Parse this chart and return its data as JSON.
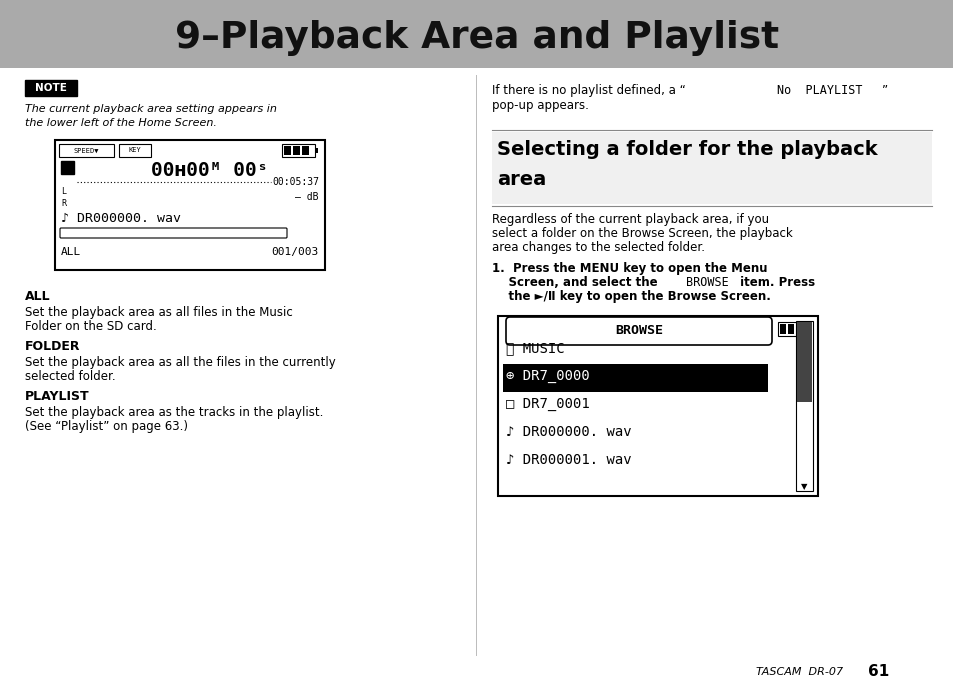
{
  "title": "9–Playback Area and Playlist",
  "title_bg": "#aaaaaa",
  "title_color": "#111111",
  "bg_color": "#ffffff",
  "note_label": "NOTE",
  "note_italic1": "The current playback area setting appears in",
  "note_italic2": "the lower left of the Home Screen.",
  "all_head": "ALL",
  "all_body1": "Set the playback area as all files in the Music",
  "all_body2": "Folder on the SD card.",
  "folder_head": "FOLDER",
  "folder_body1": "Set the playback area as all the files in the currently",
  "folder_body2": "selected folder.",
  "playlist_head": "PLAYLIST",
  "playlist_body1": "Set the playback area as the tracks in the playlist.",
  "playlist_body2": "(See “Playlist” on page 63.)",
  "right_p1a": "If there is no playlist defined, a “",
  "right_p1mono": "No  PLAYLIST",
  "right_p1b": "”",
  "right_p1c": "pop-up appears.",
  "section_head1": "Selecting a folder for the playback",
  "section_head2": "area",
  "right_p2_1": "Regardless of the current playback area, if you",
  "right_p2_2": "select a folder on the Browse Screen, the playback",
  "right_p2_3": "area changes to the selected folder.",
  "step1_1": "1.  Press the MENU key to open the Menu",
  "step1_2a": "    Screen, and select the ",
  "step1_2mono": "BROWSE",
  "step1_2b": " item. Press",
  "step1_3a": "    the ►/Ⅱ key to open the Browse Screen.",
  "footer_italic": "TASCAM  DR-07",
  "page_num": "61"
}
